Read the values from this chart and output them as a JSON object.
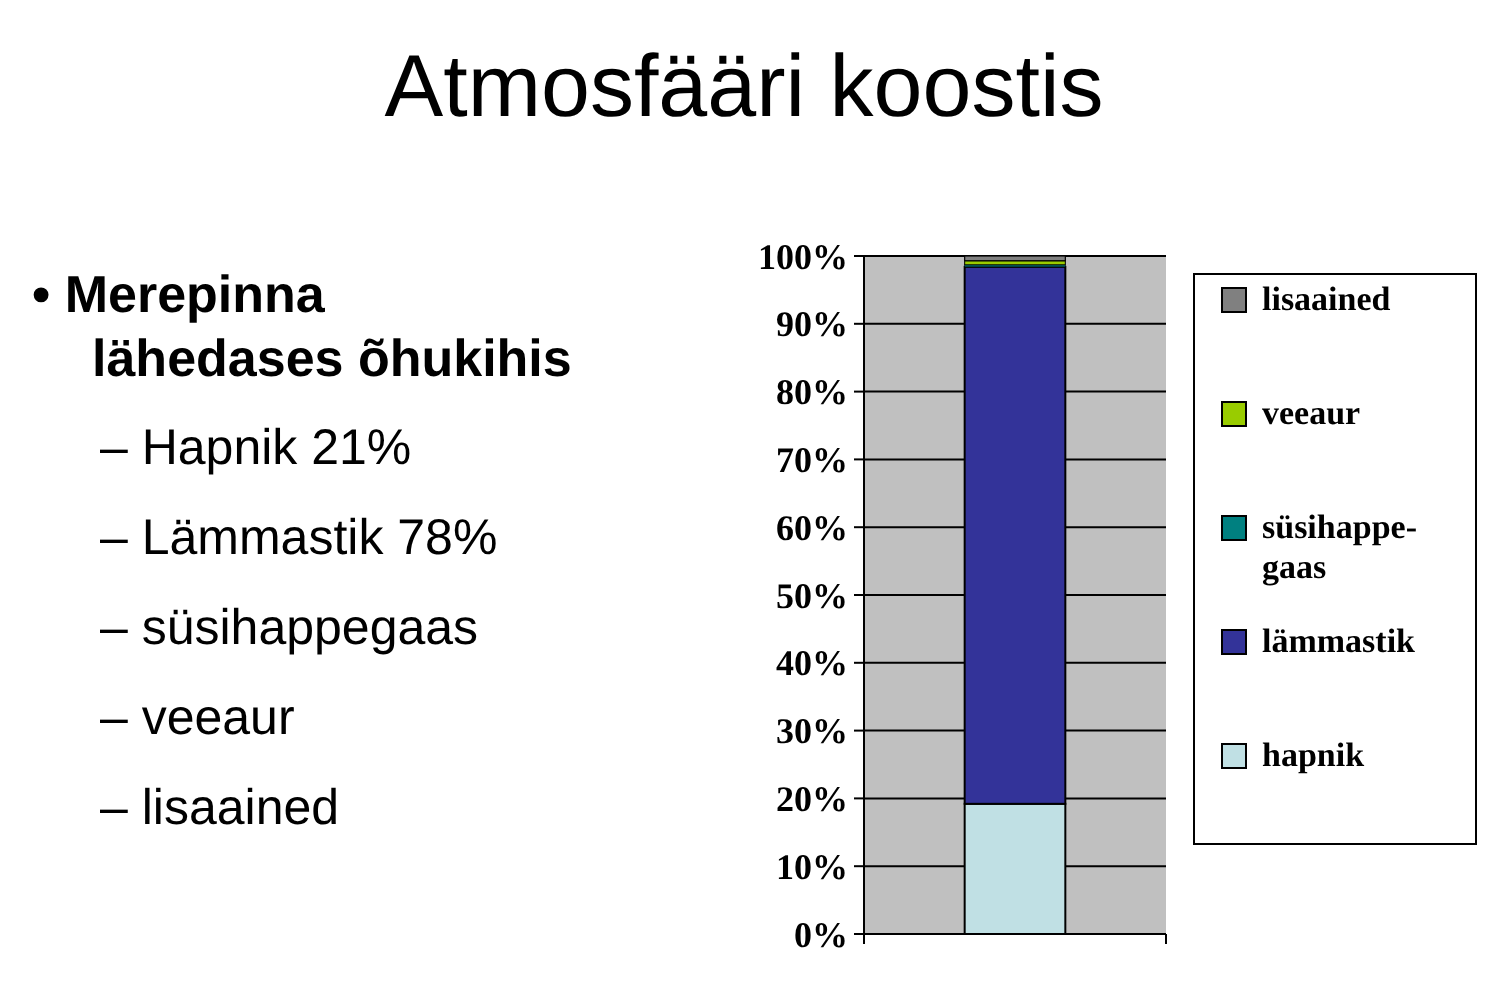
{
  "chart_data": {
    "type": "bar",
    "title": "Atmosfääri koostis",
    "categories": [
      null
    ],
    "stacked": true,
    "series": [
      {
        "name": "hapnik",
        "color": "#c0e0e4",
        "values": [
          19.2
        ]
      },
      {
        "name": "lämmastik",
        "color": "#333399",
        "values": [
          79.2
        ]
      },
      {
        "name": "süsihappe-gaas",
        "color": "#008080",
        "values": [
          0.3
        ]
      },
      {
        "name": "veeaur",
        "color": "#99cc00",
        "values": [
          0.6
        ]
      },
      {
        "name": "lisaained",
        "color": "#808080",
        "values": [
          0.7
        ]
      }
    ],
    "ylim": [
      0,
      100
    ],
    "yticks": [
      {
        "value": 0,
        "label": "0%"
      },
      {
        "value": 10,
        "label": "10%"
      },
      {
        "value": 20,
        "label": "20%"
      },
      {
        "value": 30,
        "label": "30%"
      },
      {
        "value": 40,
        "label": "40%"
      },
      {
        "value": 50,
        "label": "50%"
      },
      {
        "value": 60,
        "label": "60%"
      },
      {
        "value": 70,
        "label": "70%"
      },
      {
        "value": 80,
        "label": "80%"
      },
      {
        "value": 90,
        "label": "90%"
      },
      {
        "value": 100,
        "label": "100%"
      }
    ],
    "grid": "y",
    "legend": "right",
    "annotations": [
      "• Merepinna lähedases õhukihis",
      "– Hapnik 21%",
      "– Lämmastik 78%",
      "– süsihappegaas",
      "– veeaur",
      "– lisaained"
    ]
  }
}
